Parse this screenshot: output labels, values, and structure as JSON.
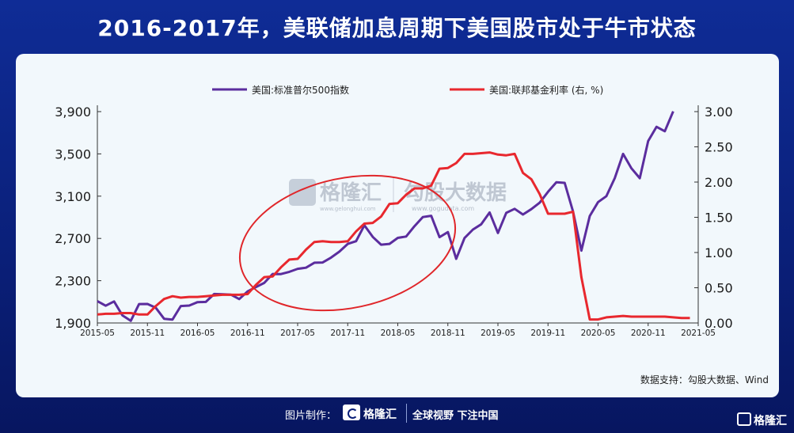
{
  "title": "2016-2017年，美联储加息周期下美国股市处于牛市状态",
  "source": "数据支持：勾股大数据、Wind",
  "footer": {
    "made_by": "图片制作：",
    "brand": "格隆汇",
    "slogan": "全球视野 下注中国",
    "corner_brand": "格隆汇"
  },
  "watermark": {
    "brand1": "格隆汇",
    "brand1_url": "www.gelonghui.com",
    "brand2": "勾股大数据",
    "brand2_url": "www.gogudata.com"
  },
  "colors": {
    "sp500": "#5b2d9e",
    "fedrate": "#e8282e",
    "circle": "#e0262a"
  },
  "chart_data": {
    "type": "line",
    "x_ticks": [
      "2015-05",
      "2015-11",
      "2016-05",
      "2016-11",
      "2017-05",
      "2017-11",
      "2018-05",
      "2018-11",
      "2019-05",
      "2019-11",
      "2020-05",
      "2020-11",
      "2021-05"
    ],
    "y_left": {
      "min": 1900,
      "max": 3900,
      "ticks": [
        "1,900",
        "2,300",
        "2,700",
        "3,100",
        "3,500",
        "3,900"
      ]
    },
    "y_right": {
      "min": 0,
      "max": 3,
      "ticks": [
        "0.00",
        "0.50",
        "1.00",
        "1.50",
        "2.00",
        "2.50",
        "3.00"
      ]
    },
    "legend_placement": "top",
    "series": [
      {
        "name": "美国:标准普尔500指数",
        "axis": "left",
        "x": [
          "2015-05",
          "2015-06",
          "2015-07",
          "2015-08",
          "2015-09",
          "2015-10",
          "2015-11",
          "2015-12",
          "2016-01",
          "2016-02",
          "2016-03",
          "2016-04",
          "2016-05",
          "2016-06",
          "2016-07",
          "2016-08",
          "2016-09",
          "2016-10",
          "2016-11",
          "2016-12",
          "2017-01",
          "2017-02",
          "2017-03",
          "2017-04",
          "2017-05",
          "2017-06",
          "2017-07",
          "2017-08",
          "2017-09",
          "2017-10",
          "2017-11",
          "2017-12",
          "2018-01",
          "2018-02",
          "2018-03",
          "2018-04",
          "2018-05",
          "2018-06",
          "2018-07",
          "2018-08",
          "2018-09",
          "2018-10",
          "2018-11",
          "2018-12",
          "2019-01",
          "2019-02",
          "2019-03",
          "2019-04",
          "2019-05",
          "2019-06",
          "2019-07",
          "2019-08",
          "2019-09",
          "2019-10",
          "2019-11",
          "2019-12",
          "2020-01",
          "2020-02",
          "2020-03",
          "2020-04",
          "2020-05",
          "2020-06",
          "2020-07",
          "2020-08",
          "2020-09",
          "2020-10",
          "2020-11",
          "2020-12",
          "2021-01",
          "2021-02"
        ],
        "values": [
          2107,
          2063,
          2104,
          1972,
          1920,
          2079,
          2080,
          2044,
          1940,
          1932,
          2060,
          2065,
          2097,
          2099,
          2174,
          2171,
          2168,
          2126,
          2199,
          2239,
          2279,
          2364,
          2363,
          2384,
          2412,
          2423,
          2470,
          2472,
          2519,
          2575,
          2648,
          2674,
          2824,
          2714,
          2641,
          2648,
          2705,
          2718,
          2816,
          2902,
          2914,
          2712,
          2760,
          2507,
          2704,
          2784,
          2834,
          2946,
          2752,
          2942,
          2980,
          2926,
          2977,
          3038,
          3141,
          3231,
          3226,
          2954,
          2585,
          2912,
          3044,
          3100,
          3271,
          3500,
          3363,
          3270,
          3622,
          3756,
          3714,
          3902
        ]
      },
      {
        "name": "美国:联邦基金利率 (右, %)",
        "axis": "right",
        "x": [
          "2015-05",
          "2015-06",
          "2015-07",
          "2015-08",
          "2015-09",
          "2015-10",
          "2015-11",
          "2015-12",
          "2016-01",
          "2016-02",
          "2016-03",
          "2016-04",
          "2016-05",
          "2016-06",
          "2016-07",
          "2016-08",
          "2016-09",
          "2016-10",
          "2016-11",
          "2016-12",
          "2017-01",
          "2017-02",
          "2017-03",
          "2017-04",
          "2017-05",
          "2017-06",
          "2017-07",
          "2017-08",
          "2017-09",
          "2017-10",
          "2017-11",
          "2017-12",
          "2018-01",
          "2018-02",
          "2018-03",
          "2018-04",
          "2018-05",
          "2018-06",
          "2018-07",
          "2018-08",
          "2018-09",
          "2018-10",
          "2018-11",
          "2018-12",
          "2019-01",
          "2019-02",
          "2019-03",
          "2019-04",
          "2019-05",
          "2019-06",
          "2019-07",
          "2019-08",
          "2019-09",
          "2019-10",
          "2019-11",
          "2019-12",
          "2020-01",
          "2020-02",
          "2020-03",
          "2020-04",
          "2020-05",
          "2020-06",
          "2020-07",
          "2020-08",
          "2020-09",
          "2020-10",
          "2020-11",
          "2020-12",
          "2021-01",
          "2021-02",
          "2021-03",
          "2021-04"
        ],
        "values": [
          0.12,
          0.13,
          0.13,
          0.14,
          0.14,
          0.12,
          0.12,
          0.24,
          0.34,
          0.38,
          0.36,
          0.37,
          0.37,
          0.38,
          0.39,
          0.4,
          0.4,
          0.4,
          0.41,
          0.54,
          0.65,
          0.66,
          0.79,
          0.9,
          0.91,
          1.04,
          1.15,
          1.16,
          1.15,
          1.15,
          1.16,
          1.3,
          1.41,
          1.42,
          1.51,
          1.69,
          1.7,
          1.82,
          1.91,
          1.91,
          1.95,
          2.19,
          2.2,
          2.27,
          2.4,
          2.4,
          2.41,
          2.42,
          2.39,
          2.38,
          2.4,
          2.13,
          2.04,
          1.83,
          1.55,
          1.55,
          1.55,
          1.58,
          0.65,
          0.05,
          0.05,
          0.08,
          0.09,
          0.1,
          0.09,
          0.09,
          0.09,
          0.09,
          0.09,
          0.08,
          0.07,
          0.07
        ]
      }
    ]
  }
}
